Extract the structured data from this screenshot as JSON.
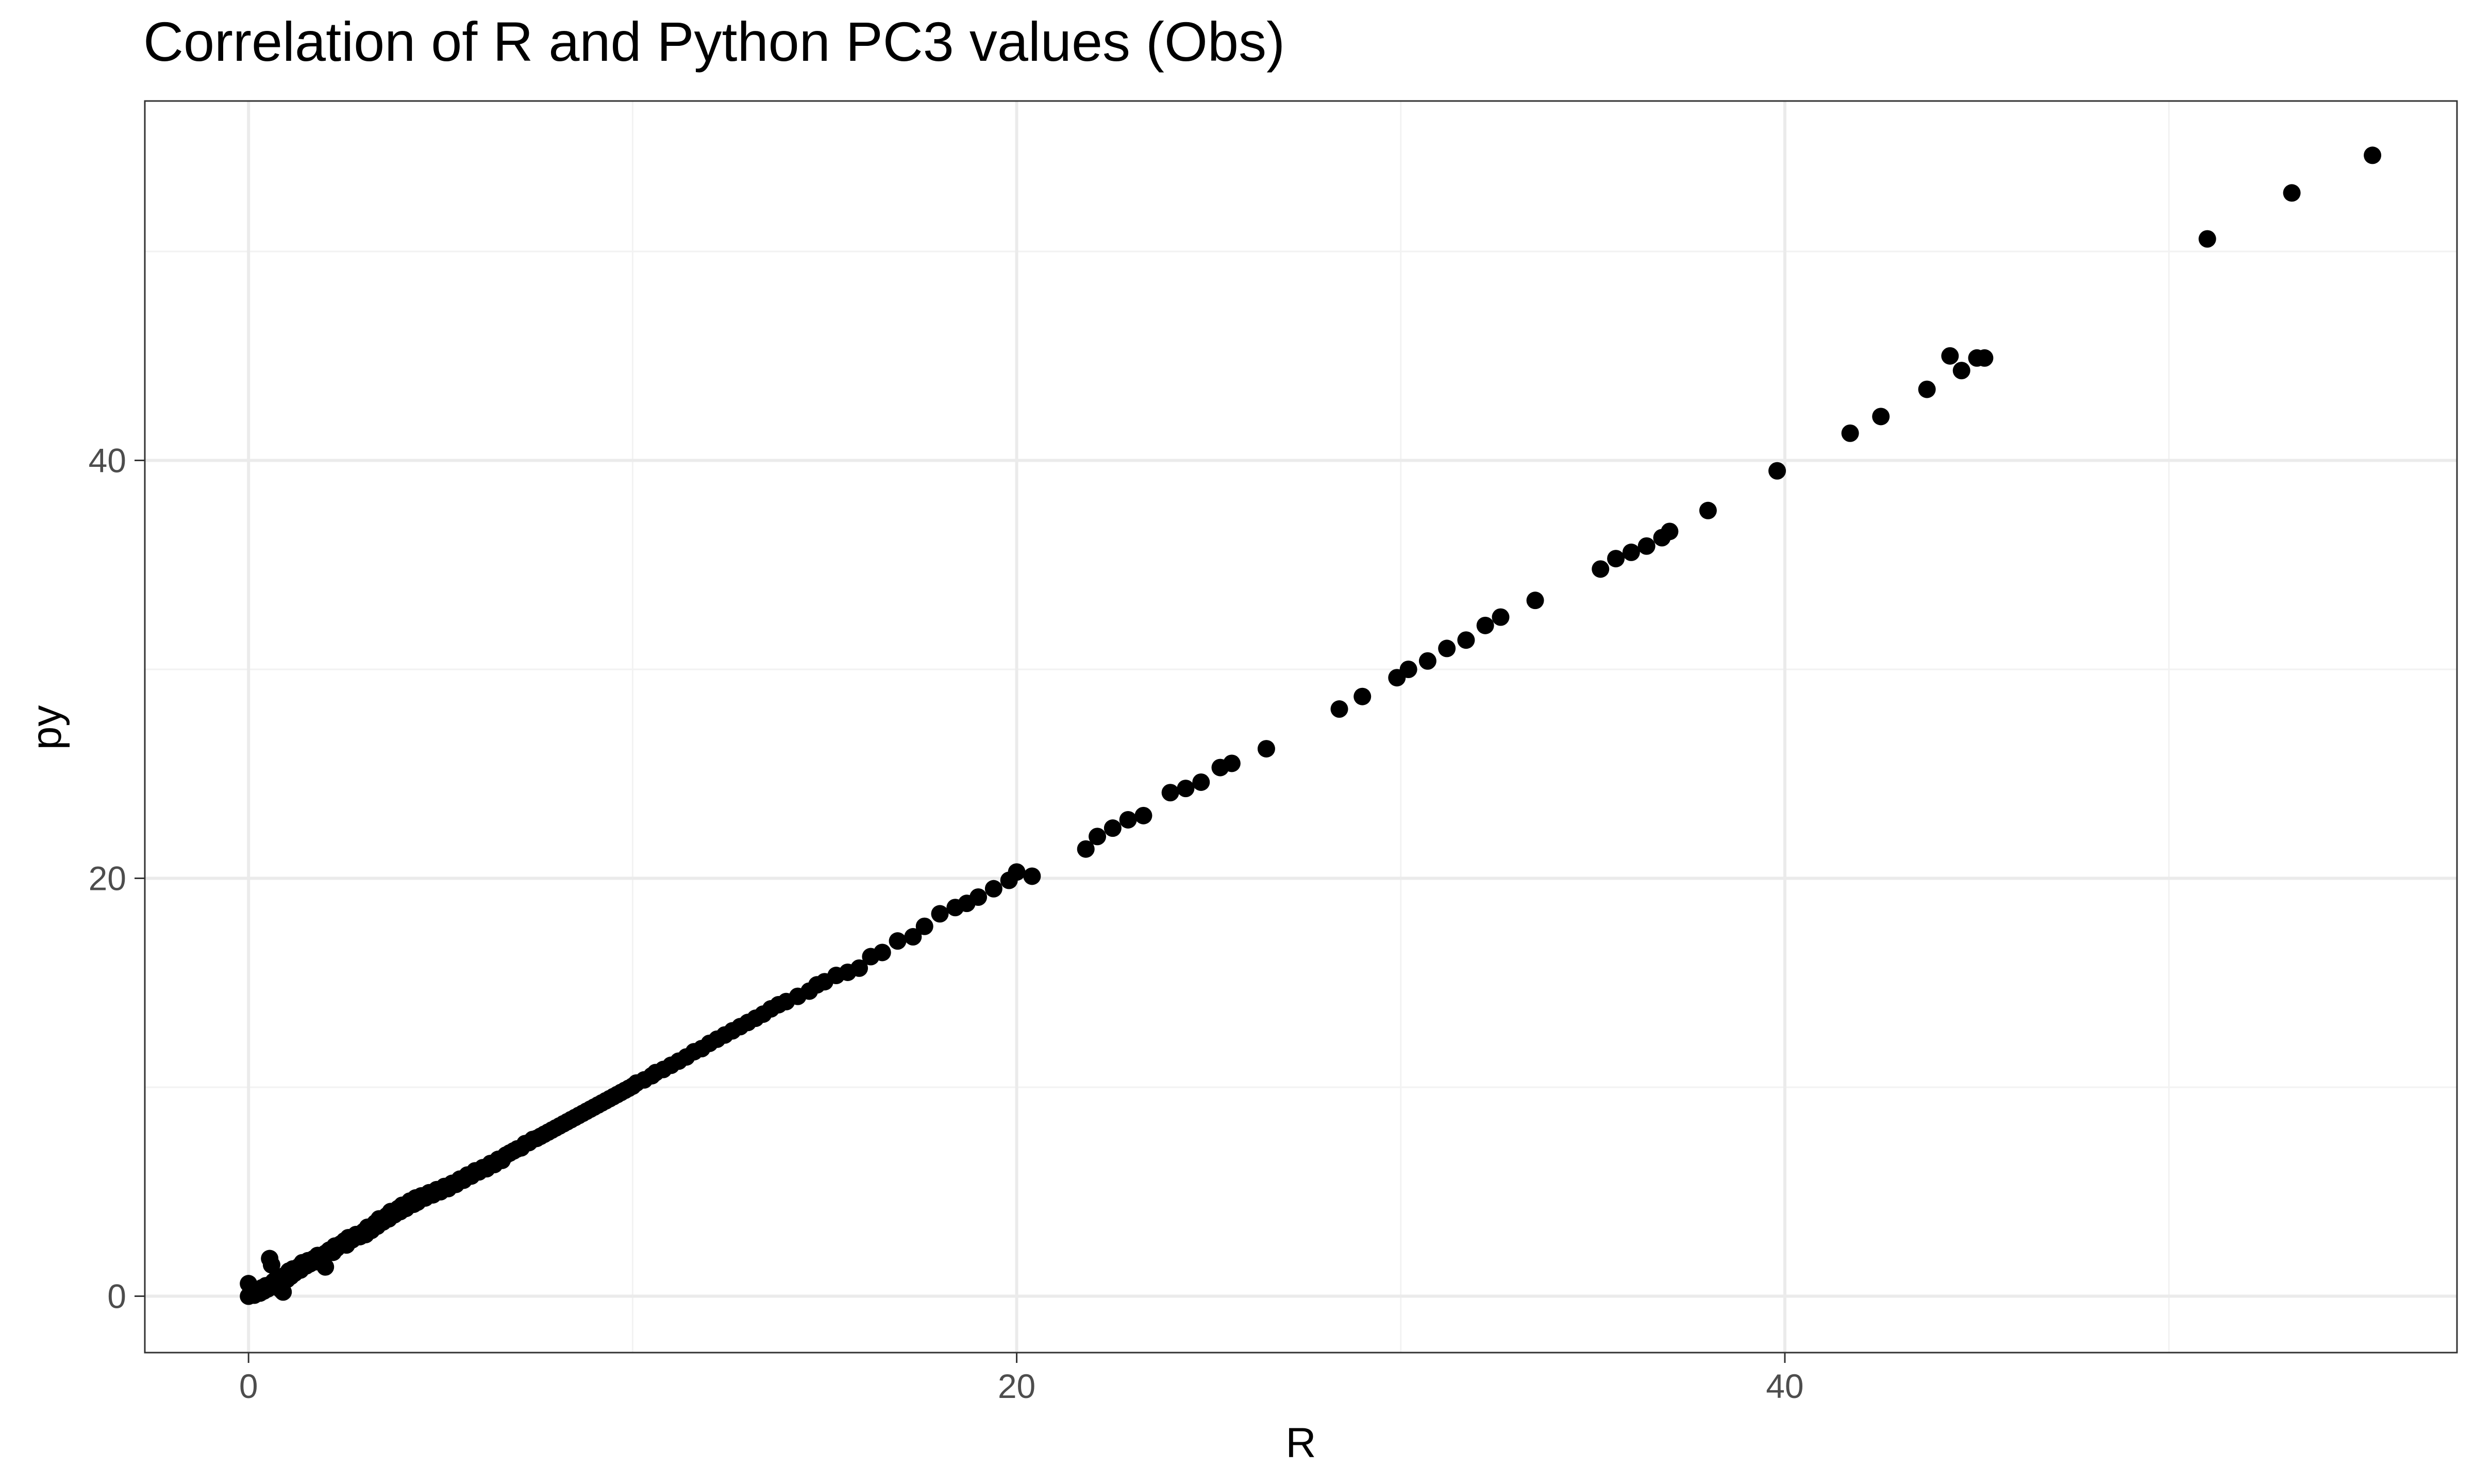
{
  "chart_data": {
    "type": "scatter",
    "title": "Correlation of R and Python PC3 values (Obs)",
    "xlabel": "R",
    "ylabel": "py",
    "xlim": [
      -2.7,
      57.5
    ],
    "ylim": [
      -2.7,
      57.2
    ],
    "x_ticks": [
      0,
      20,
      40
    ],
    "y_ticks": [
      0,
      20,
      40
    ],
    "x_minor_ticks": [
      10,
      30,
      50
    ],
    "y_minor_ticks": [
      10,
      30,
      50
    ],
    "x_tick_labels": [
      "0",
      "20",
      "40"
    ],
    "y_tick_labels": [
      "0",
      "20",
      "40"
    ],
    "grid": true,
    "legend": "none",
    "point_color": "#000000",
    "points": [
      [
        0.0,
        0.0
      ],
      [
        0.05,
        0.1
      ],
      [
        0.1,
        0.3
      ],
      [
        0.15,
        0.05
      ],
      [
        0.0,
        0.6
      ],
      [
        0.2,
        0.2
      ],
      [
        0.3,
        0.15
      ],
      [
        0.35,
        0.4
      ],
      [
        0.4,
        0.25
      ],
      [
        0.45,
        0.5
      ],
      [
        0.5,
        0.35
      ],
      [
        0.55,
        1.8
      ],
      [
        0.6,
        1.5
      ],
      [
        0.65,
        0.7
      ],
      [
        0.7,
        0.45
      ],
      [
        0.75,
        0.9
      ],
      [
        0.8,
        0.6
      ],
      [
        0.85,
        0.3
      ],
      [
        0.9,
        0.2
      ],
      [
        0.95,
        1.0
      ],
      [
        1.0,
        0.8
      ],
      [
        1.05,
        1.2
      ],
      [
        1.1,
        0.95
      ],
      [
        1.15,
        1.3
      ],
      [
        1.2,
        1.1
      ],
      [
        1.3,
        1.4
      ],
      [
        1.35,
        1.25
      ],
      [
        1.4,
        1.6
      ],
      [
        1.5,
        1.45
      ],
      [
        1.55,
        1.7
      ],
      [
        1.6,
        1.55
      ],
      [
        1.7,
        1.8
      ],
      [
        1.75,
        1.65
      ],
      [
        1.8,
        1.95
      ],
      [
        1.9,
        1.85
      ],
      [
        2.0,
        2.05
      ],
      [
        2.0,
        1.4
      ],
      [
        2.1,
        2.2
      ],
      [
        2.2,
        2.1
      ],
      [
        2.25,
        2.4
      ],
      [
        2.3,
        2.3
      ],
      [
        2.4,
        2.5
      ],
      [
        2.5,
        2.65
      ],
      [
        2.55,
        2.45
      ],
      [
        2.6,
        2.8
      ],
      [
        2.7,
        2.7
      ],
      [
        2.8,
        2.95
      ],
      [
        2.9,
        2.85
      ],
      [
        3.0,
        3.1
      ],
      [
        3.05,
        2.95
      ],
      [
        3.1,
        3.3
      ],
      [
        3.2,
        3.15
      ],
      [
        3.3,
        3.5
      ],
      [
        3.35,
        3.35
      ],
      [
        3.4,
        3.7
      ],
      [
        3.5,
        3.55
      ],
      [
        3.6,
        3.85
      ],
      [
        3.65,
        3.7
      ],
      [
        3.7,
        4.05
      ],
      [
        3.8,
        3.9
      ],
      [
        3.9,
        4.2
      ],
      [
        3.95,
        4.05
      ],
      [
        4.0,
        4.35
      ],
      [
        4.1,
        4.2
      ],
      [
        4.2,
        4.55
      ],
      [
        4.3,
        4.4
      ],
      [
        4.35,
        4.7
      ],
      [
        4.4,
        4.5
      ],
      [
        4.5,
        4.8
      ],
      [
        4.6,
        4.7
      ],
      [
        4.7,
        4.95
      ],
      [
        4.8,
        4.85
      ],
      [
        4.9,
        5.1
      ],
      [
        5.0,
        5.0
      ],
      [
        5.1,
        5.25
      ],
      [
        5.2,
        5.15
      ],
      [
        5.3,
        5.4
      ],
      [
        5.4,
        5.35
      ],
      [
        5.5,
        5.6
      ],
      [
        5.6,
        5.55
      ],
      [
        5.7,
        5.8
      ],
      [
        5.8,
        5.75
      ],
      [
        5.9,
        6.0
      ],
      [
        6.0,
        5.95
      ],
      [
        6.1,
        6.15
      ],
      [
        6.2,
        6.1
      ],
      [
        6.3,
        6.35
      ],
      [
        6.4,
        6.3
      ],
      [
        6.5,
        6.55
      ],
      [
        6.6,
        6.5
      ],
      [
        6.7,
        6.75
      ],
      [
        6.8,
        6.85
      ],
      [
        6.9,
        6.95
      ],
      [
        7.0,
        7.05
      ],
      [
        7.1,
        7.1
      ],
      [
        7.2,
        7.3
      ],
      [
        7.3,
        7.35
      ],
      [
        7.4,
        7.5
      ],
      [
        7.5,
        7.55
      ],
      [
        7.6,
        7.65
      ],
      [
        7.7,
        7.75
      ],
      [
        7.8,
        7.85
      ],
      [
        7.9,
        7.95
      ],
      [
        8.0,
        8.05
      ],
      [
        8.1,
        8.15
      ],
      [
        8.2,
        8.25
      ],
      [
        8.3,
        8.35
      ],
      [
        8.4,
        8.45
      ],
      [
        8.5,
        8.55
      ],
      [
        8.6,
        8.65
      ],
      [
        8.7,
        8.75
      ],
      [
        8.8,
        8.85
      ],
      [
        8.9,
        8.95
      ],
      [
        9.0,
        9.05
      ],
      [
        9.1,
        9.15
      ],
      [
        9.2,
        9.25
      ],
      [
        9.3,
        9.35
      ],
      [
        9.4,
        9.45
      ],
      [
        9.5,
        9.55
      ],
      [
        9.6,
        9.65
      ],
      [
        9.7,
        9.75
      ],
      [
        9.8,
        9.85
      ],
      [
        9.9,
        9.95
      ],
      [
        10.0,
        10.05
      ],
      [
        10.1,
        10.2
      ],
      [
        10.3,
        10.35
      ],
      [
        10.5,
        10.55
      ],
      [
        10.6,
        10.7
      ],
      [
        10.8,
        10.85
      ],
      [
        11.0,
        11.05
      ],
      [
        11.2,
        11.25
      ],
      [
        11.4,
        11.45
      ],
      [
        11.6,
        11.7
      ],
      [
        11.8,
        11.85
      ],
      [
        12.0,
        12.1
      ],
      [
        12.2,
        12.3
      ],
      [
        12.4,
        12.5
      ],
      [
        12.6,
        12.7
      ],
      [
        12.8,
        12.9
      ],
      [
        13.0,
        13.1
      ],
      [
        13.2,
        13.3
      ],
      [
        13.4,
        13.5
      ],
      [
        13.6,
        13.75
      ],
      [
        13.8,
        13.95
      ],
      [
        14.0,
        14.1
      ],
      [
        14.3,
        14.35
      ],
      [
        14.6,
        14.6
      ],
      [
        14.8,
        14.9
      ],
      [
        15.0,
        15.05
      ],
      [
        15.3,
        15.35
      ],
      [
        15.6,
        15.5
      ],
      [
        15.9,
        15.7
      ],
      [
        16.2,
        16.25
      ],
      [
        16.5,
        16.45
      ],
      [
        16.9,
        17.0
      ],
      [
        17.3,
        17.2
      ],
      [
        17.6,
        17.7
      ],
      [
        18.0,
        18.3
      ],
      [
        18.4,
        18.6
      ],
      [
        18.7,
        18.8
      ],
      [
        19.0,
        19.1
      ],
      [
        19.4,
        19.5
      ],
      [
        19.8,
        19.9
      ],
      [
        20.0,
        20.3
      ],
      [
        20.4,
        20.1
      ],
      [
        21.8,
        21.4
      ],
      [
        22.1,
        22.0
      ],
      [
        22.5,
        22.4
      ],
      [
        22.9,
        22.8
      ],
      [
        23.3,
        23.0
      ],
      [
        24.0,
        24.1
      ],
      [
        24.4,
        24.3
      ],
      [
        24.8,
        24.6
      ],
      [
        25.3,
        25.3
      ],
      [
        25.6,
        25.5
      ],
      [
        26.5,
        26.2
      ],
      [
        28.4,
        28.1
      ],
      [
        29.0,
        28.7
      ],
      [
        29.9,
        29.6
      ],
      [
        30.2,
        30.0
      ],
      [
        30.7,
        30.4
      ],
      [
        31.2,
        31.0
      ],
      [
        31.7,
        31.4
      ],
      [
        32.2,
        32.1
      ],
      [
        32.6,
        32.5
      ],
      [
        33.5,
        33.3
      ],
      [
        35.2,
        34.8
      ],
      [
        35.6,
        35.3
      ],
      [
        36.0,
        35.6
      ],
      [
        36.4,
        35.9
      ],
      [
        36.8,
        36.3
      ],
      [
        37.0,
        36.6
      ],
      [
        38.0,
        37.6
      ],
      [
        39.8,
        39.5
      ],
      [
        41.7,
        41.3
      ],
      [
        42.5,
        42.1
      ],
      [
        43.7,
        43.4
      ],
      [
        44.3,
        45.0
      ],
      [
        44.6,
        44.3
      ],
      [
        45.0,
        44.9
      ],
      [
        45.2,
        44.9
      ],
      [
        51.0,
        50.6
      ],
      [
        53.2,
        52.8
      ],
      [
        55.3,
        54.6
      ]
    ]
  }
}
